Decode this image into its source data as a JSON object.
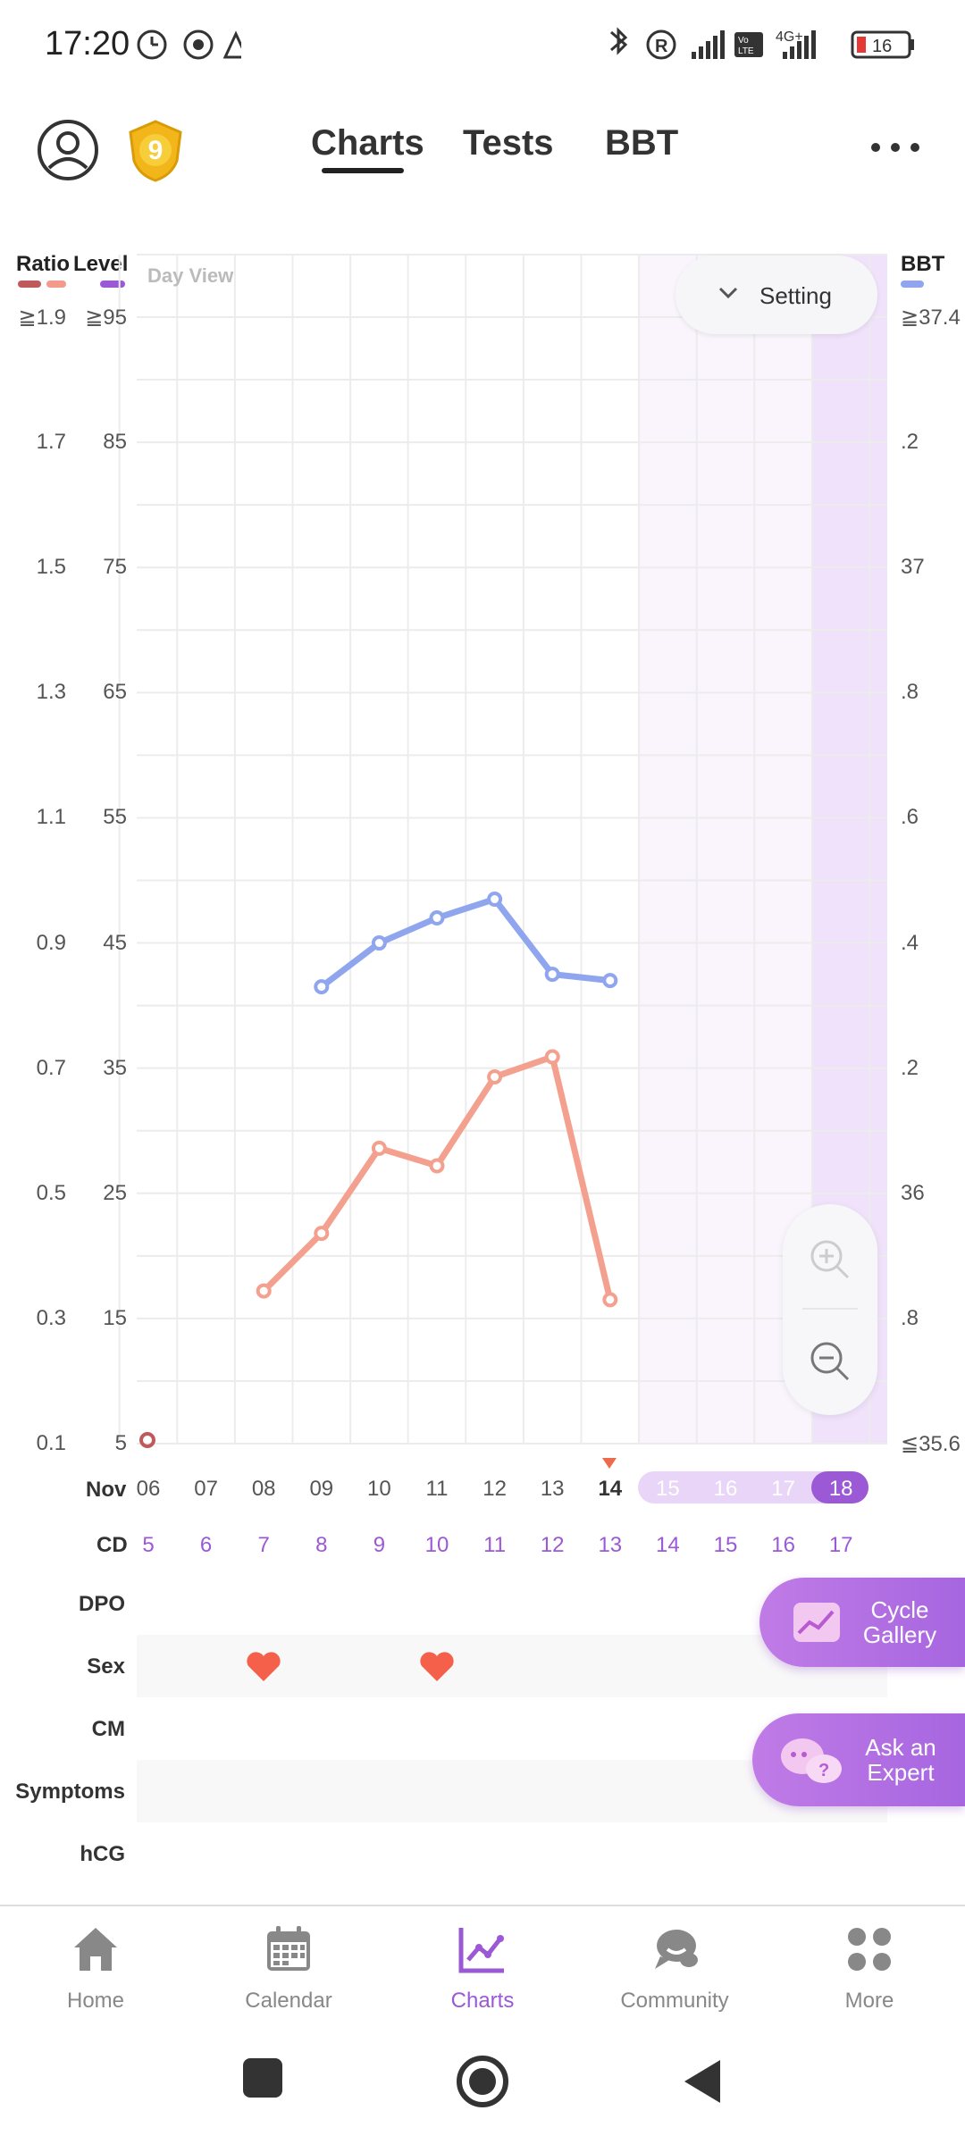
{
  "status_bar": {
    "time": "17:20",
    "battery": "16",
    "network": "4G+"
  },
  "header": {
    "level_badge": "9",
    "tabs": [
      {
        "label": "Charts",
        "active": true
      },
      {
        "label": "Tests",
        "active": false
      },
      {
        "label": "BBT",
        "active": false
      }
    ]
  },
  "chart": {
    "legend": {
      "ratio": "Ratio",
      "level": "Level",
      "bbt": "BBT"
    },
    "day_view": "Day View",
    "setting": "Setting",
    "ratio_ticks": [
      "≧1.9",
      "1.7",
      "1.5",
      "1.3",
      "1.1",
      "0.9",
      "0.7",
      "0.5",
      "0.3",
      "0.1"
    ],
    "level_ticks": [
      "≧95",
      "85",
      "75",
      "65",
      "55",
      "45",
      "35",
      "25",
      "15",
      "5"
    ],
    "bbt_ticks": [
      "≧37.4",
      ".2",
      "37",
      ".8",
      ".6",
      ".4",
      ".2",
      "36",
      ".8",
      "≦35.6"
    ],
    "month": "Nov",
    "dates": [
      "06",
      "07",
      "08",
      "09",
      "10",
      "11",
      "12",
      "13",
      "14",
      "15",
      "16",
      "17",
      "18"
    ],
    "cd_label": "CD",
    "cd_values": [
      "5",
      "6",
      "7",
      "8",
      "9",
      "10",
      "11",
      "12",
      "13",
      "14",
      "15",
      "16",
      "17"
    ],
    "today_index": 8
  },
  "chart_data": {
    "type": "line",
    "x": [
      "06",
      "07",
      "08",
      "09",
      "10",
      "11",
      "12",
      "13",
      "14"
    ],
    "series": [
      {
        "name": "BBT",
        "color": "#8fa5ee",
        "values": [
          null,
          null,
          null,
          36.33,
          36.4,
          36.44,
          36.47,
          36.35,
          36.34
        ]
      },
      {
        "name": "Level",
        "color": "#f4a08f",
        "values": [
          null,
          null,
          17.2,
          21.8,
          28.6,
          27.2,
          34.3,
          35.9,
          16.5
        ]
      }
    ],
    "bbt_ylim": [
      35.6,
      37.4
    ],
    "level_ylim": [
      5,
      95
    ],
    "ratio_ylim": [
      0.1,
      1.9
    ]
  },
  "log_rows": [
    {
      "label": "DPO",
      "shaded": false,
      "hearts": []
    },
    {
      "label": "Sex",
      "shaded": true,
      "hearts": [
        2,
        5
      ]
    },
    {
      "label": "CM",
      "shaded": false,
      "hearts": []
    },
    {
      "label": "Symptoms",
      "shaded": true,
      "hearts": []
    },
    {
      "label": "hCG",
      "shaded": false,
      "hearts": []
    }
  ],
  "floating": {
    "cycle_gallery": "Cycle Gallery",
    "ask_expert": "Ask an Expert"
  },
  "bottom_nav": [
    {
      "label": "Home",
      "icon": "home-icon",
      "active": false
    },
    {
      "label": "Calendar",
      "icon": "calendar-icon",
      "active": false
    },
    {
      "label": "Charts",
      "icon": "charts-icon",
      "active": true
    },
    {
      "label": "Community",
      "icon": "community-icon",
      "active": false
    },
    {
      "label": "More",
      "icon": "more-icon",
      "active": false
    }
  ],
  "colors": {
    "accent": "#9b59d6",
    "bbt_line": "#8fa5ee",
    "level_line": "#f4a08f",
    "heart": "#f4604a",
    "fertile": "#f4ecfb"
  }
}
